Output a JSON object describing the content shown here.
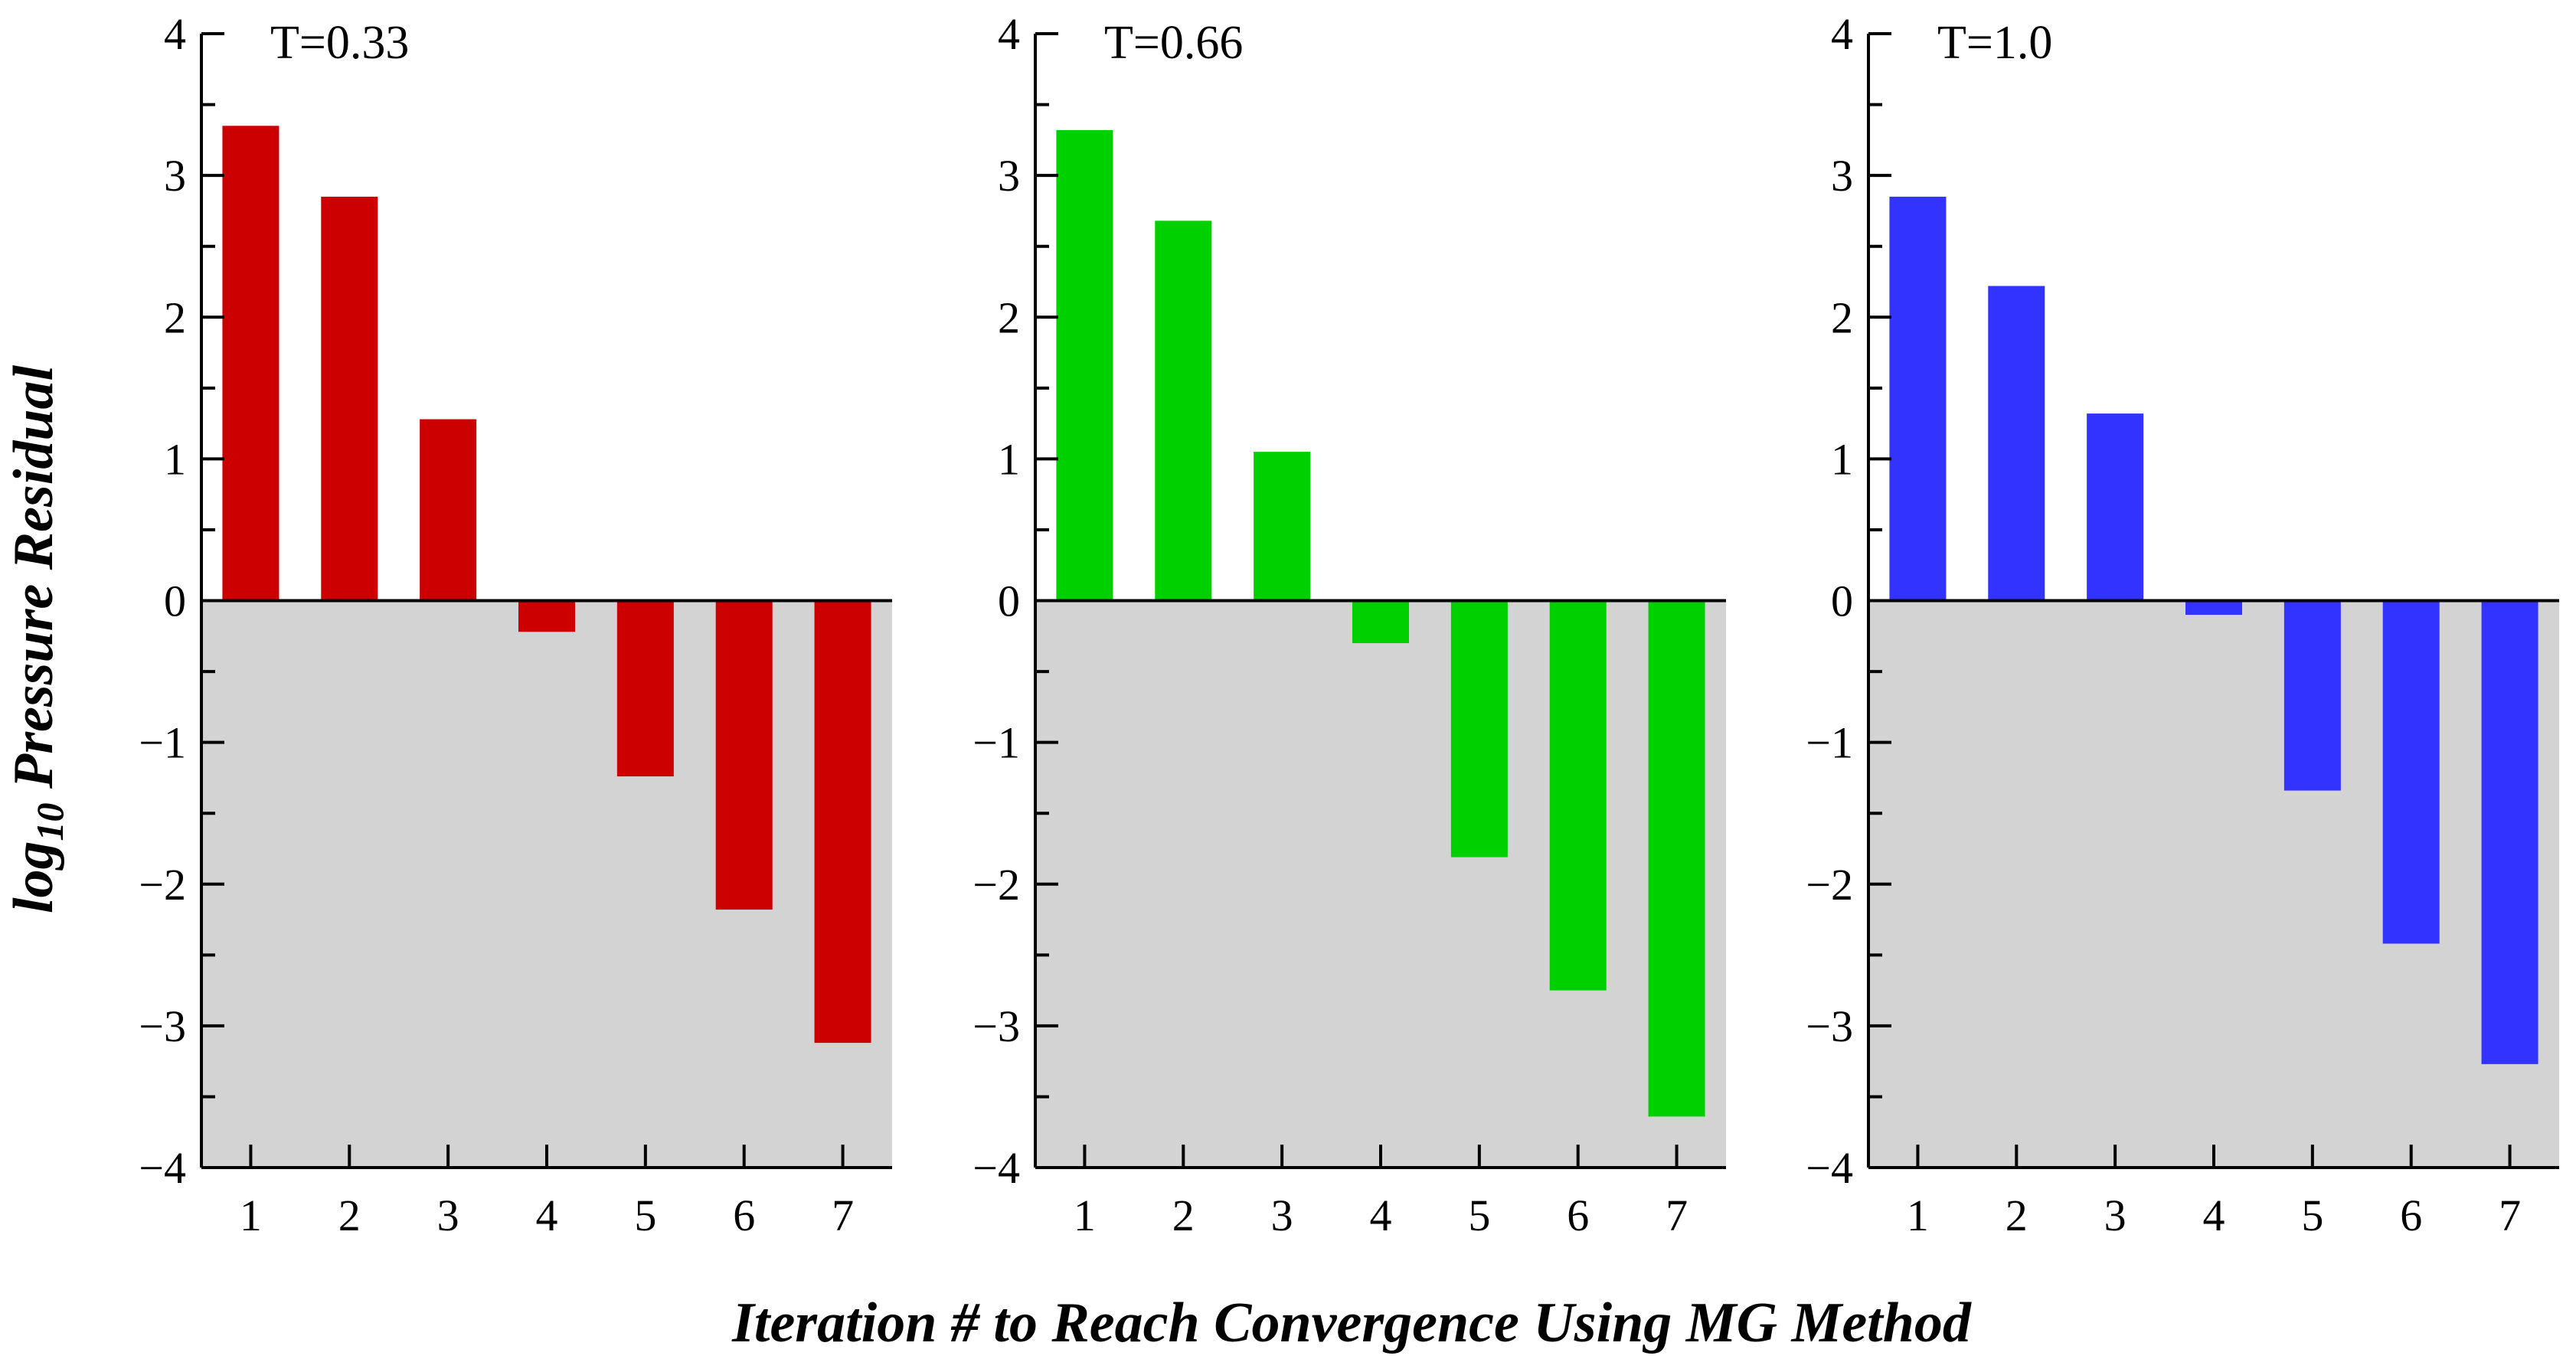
{
  "figure": {
    "ylabel_main": "log",
    "ylabel_sub": "10",
    "ylabel_rest": " Pressure Residual",
    "xlabel": "Iteration # to Reach Convergence Using MG Method",
    "negative_region_color": "#d3d3d3"
  },
  "chart_data": [
    {
      "type": "bar",
      "title": "T=0.33",
      "categories": [
        "1",
        "2",
        "3",
        "4",
        "5",
        "6",
        "7"
      ],
      "values": [
        3.35,
        2.85,
        1.28,
        -0.22,
        -1.24,
        -2.18,
        -3.12
      ],
      "color": "#cc0000",
      "ylim": [
        -4,
        4
      ],
      "yticks": [
        -4,
        -3,
        -2,
        -1,
        0,
        1,
        2,
        3,
        4
      ],
      "ytick_labels": [
        "−4",
        "−3",
        "−2",
        "−1",
        "0",
        "1",
        "2",
        "3",
        "4"
      ]
    },
    {
      "type": "bar",
      "title": "T=0.66",
      "categories": [
        "1",
        "2",
        "3",
        "4",
        "5",
        "6",
        "7"
      ],
      "values": [
        3.32,
        2.68,
        1.05,
        -0.3,
        -1.81,
        -2.75,
        -3.64
      ],
      "color": "#00d000",
      "ylim": [
        -4,
        4
      ],
      "yticks": [
        -4,
        -3,
        -2,
        -1,
        0,
        1,
        2,
        3,
        4
      ],
      "ytick_labels": [
        "−4",
        "−3",
        "−2",
        "−1",
        "0",
        "1",
        "2",
        "3",
        "4"
      ]
    },
    {
      "type": "bar",
      "title": "T=1.0",
      "categories": [
        "1",
        "2",
        "3",
        "4",
        "5",
        "6",
        "7"
      ],
      "values": [
        2.85,
        2.22,
        1.32,
        -0.1,
        -1.34,
        -2.42,
        -3.27
      ],
      "color": "#3333ff",
      "ylim": [
        -4,
        4
      ],
      "yticks": [
        -4,
        -3,
        -2,
        -1,
        0,
        1,
        2,
        3,
        4
      ],
      "ytick_labels": [
        "−4",
        "−3",
        "−2",
        "−1",
        "0",
        "1",
        "2",
        "3",
        "4"
      ]
    }
  ]
}
